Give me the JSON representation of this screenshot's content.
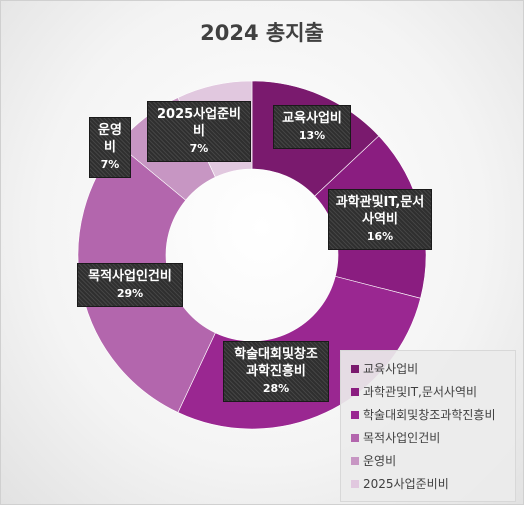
{
  "chart_data": {
    "type": "pie",
    "title": "2024 총지출",
    "categories": [
      "교육사업비",
      "과학관및IT,문서사역비",
      "학술대회및창조과학진흥비",
      "목적사업인건비",
      "운영비",
      "2025사업준비비"
    ],
    "values": [
      13,
      16,
      28,
      29,
      7,
      7
    ],
    "data_labels": [
      {
        "lines": [
          "교육사업비"
        ],
        "pct": "13%"
      },
      {
        "lines": [
          "과학관및IT,문서",
          "사역비"
        ],
        "pct": "16%"
      },
      {
        "lines": [
          "학술대회및창조",
          "과학진흥비"
        ],
        "pct": "28%"
      },
      {
        "lines": [
          "목적사업인건비"
        ],
        "pct": "29%"
      },
      {
        "lines": [
          "운영비"
        ],
        "pct": "7%"
      },
      {
        "lines": [
          "2025사업준비비"
        ],
        "pct": "7%"
      }
    ],
    "colors": [
      "#7a1a6e",
      "#8a1d80",
      "#9a2791",
      "#b366ad",
      "#c796c3",
      "#e1c8df"
    ],
    "legend_position": "bottom-right",
    "donut": true
  }
}
